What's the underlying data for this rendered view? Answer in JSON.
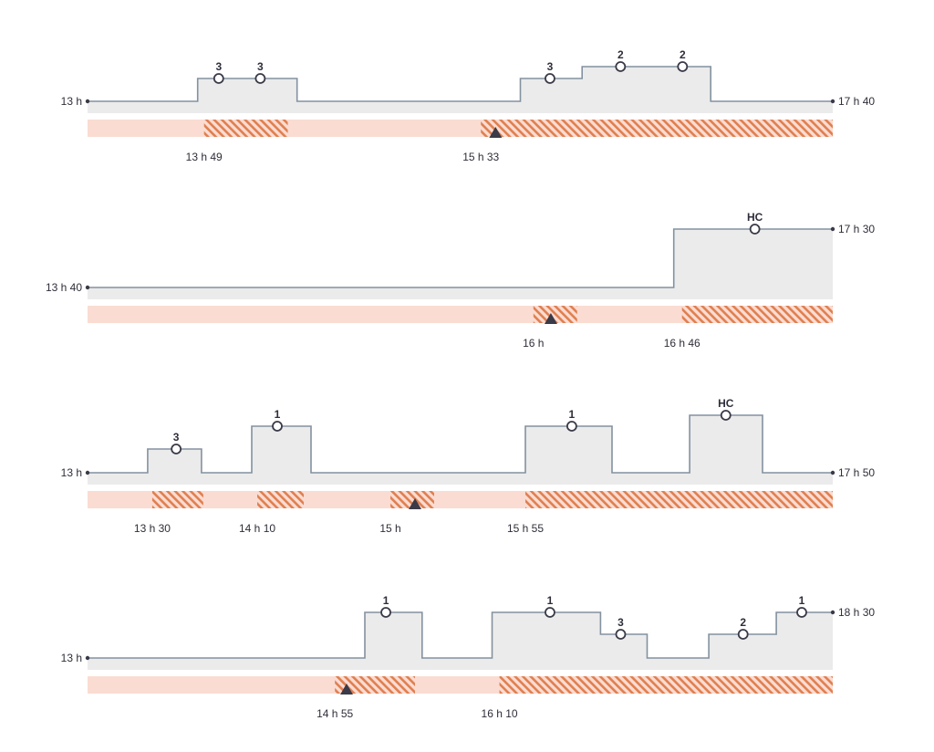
{
  "colors": {
    "line": "#8391a0",
    "fill": "#ebebeb",
    "band": "#fadcd2",
    "hatch": "#e07f4f",
    "marker": "#3a3a48",
    "text": "#2e2e3a"
  },
  "rows": [
    {
      "start_label": "13 h",
      "end_label": "17 h 40",
      "levels": [
        [
          0,
          0
        ],
        [
          0.1477,
          1
        ],
        [
          0.2811,
          0
        ],
        [
          0.5808,
          1
        ],
        [
          0.6636,
          2
        ],
        [
          0.8362,
          0
        ]
      ],
      "circles": [
        {
          "at": 0.176,
          "label": "3"
        },
        {
          "at": 0.2318,
          "label": "3"
        },
        {
          "at": 0.6205,
          "label": "3"
        },
        {
          "at": 0.7152,
          "label": "2"
        },
        {
          "at": 0.7984,
          "label": "2"
        }
      ],
      "hatch": [
        [
          0.1563,
          0.2687
        ],
        [
          0.5278,
          1.0
        ]
      ],
      "triangles": [
        0.5475
      ],
      "times": [
        {
          "at": 0.1563,
          "label": "13 h 49"
        },
        {
          "at": 0.5278,
          "label": "15 h 33"
        }
      ]
    },
    {
      "start_label": "13 h 40",
      "end_label": "17 h 30",
      "levels": [
        [
          0,
          0
        ],
        [
          0.7867,
          3
        ]
      ],
      "circles": [
        {
          "at": 0.8955,
          "label": "HC"
        }
      ],
      "hatch": [
        [
          0.5983,
          0.657
        ],
        [
          0.7977,
          1.0
        ]
      ],
      "triangles": [
        0.6217
      ],
      "times": [
        {
          "at": 0.5983,
          "label": "16 h"
        },
        {
          "at": 0.7977,
          "label": "16 h 46"
        }
      ]
    },
    {
      "start_label": "13 h",
      "end_label": "17 h 50",
      "levels": [
        [
          0,
          0
        ],
        [
          0.0807,
          1
        ],
        [
          0.1529,
          0
        ],
        [
          0.2203,
          2
        ],
        [
          0.2999,
          0
        ],
        [
          0.5875,
          2
        ],
        [
          0.7038,
          0
        ],
        [
          0.808,
          3
        ],
        [
          0.9058,
          0
        ]
      ],
      "circles": [
        {
          "at": 0.1189,
          "label": "3"
        },
        {
          "at": 0.2546,
          "label": "1"
        },
        {
          "at": 0.6498,
          "label": "1"
        },
        {
          "at": 0.8565,
          "label": "HC"
        }
      ],
      "hatch": [
        [
          0.0868,
          0.1553
        ],
        [
          0.2277,
          0.2901
        ],
        [
          0.4064,
          0.4651
        ],
        [
          0.5875,
          1.0
        ]
      ],
      "triangles": [
        0.4394
      ],
      "times": [
        {
          "at": 0.0868,
          "label": "13 h 30"
        },
        {
          "at": 0.2277,
          "label": "14 h 10"
        },
        {
          "at": 0.4064,
          "label": "15 h"
        },
        {
          "at": 0.5875,
          "label": "15 h 55"
        }
      ]
    },
    {
      "start_label": "13 h",
      "end_label": "18 h 30",
      "levels": [
        [
          0,
          0
        ],
        [
          0.3721,
          2
        ],
        [
          0.449,
          0
        ],
        [
          0.5429,
          2
        ],
        [
          0.6884,
          1
        ],
        [
          0.7509,
          0
        ],
        [
          0.8337,
          1
        ],
        [
          0.9242,
          2
        ]
      ],
      "circles": [
        {
          "at": 0.4003,
          "label": "1"
        },
        {
          "at": 0.6205,
          "label": "1"
        },
        {
          "at": 0.7154,
          "label": "3"
        },
        {
          "at": 0.8797,
          "label": "2"
        },
        {
          "at": 0.9584,
          "label": "1"
        }
      ],
      "hatch": [
        [
          0.3319,
          0.4394
        ],
        [
          0.5527,
          1.0
        ]
      ],
      "triangles": [
        0.3476
      ],
      "times": [
        {
          "at": 0.3319,
          "label": "14 h 55"
        },
        {
          "at": 0.5527,
          "label": "16 h 10"
        }
      ]
    }
  ]
}
